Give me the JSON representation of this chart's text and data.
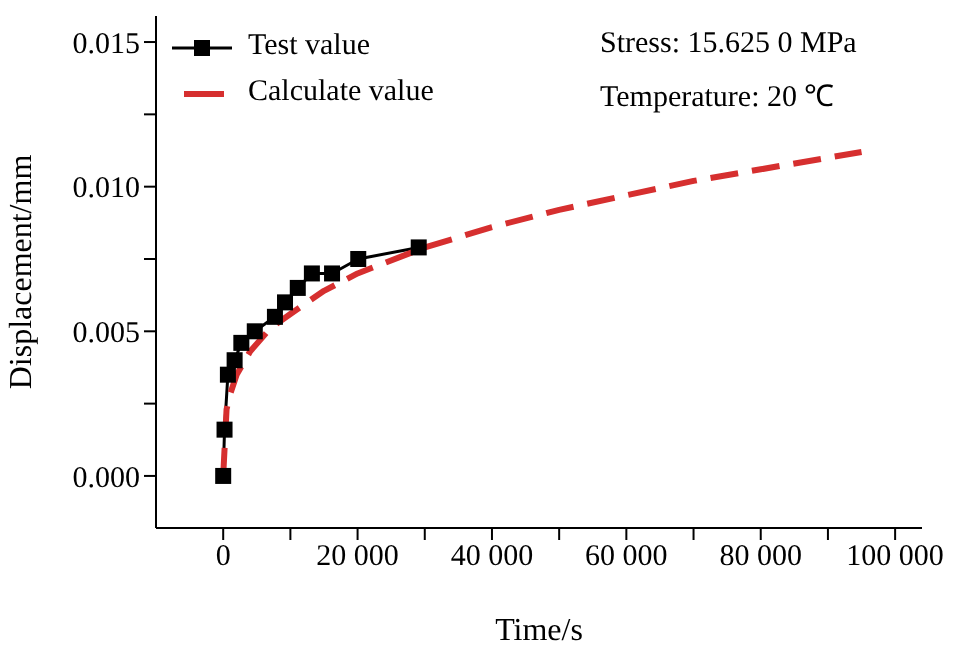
{
  "chart_data": {
    "type": "line",
    "xlabel": "Time/s",
    "ylabel": "Displacement/mm",
    "xlim": [
      -10000,
      104000
    ],
    "ylim": [
      -0.0018,
      0.0159
    ],
    "xticks": [
      {
        "value": 0,
        "label": "0"
      },
      {
        "value": 10000,
        "label": null
      },
      {
        "value": 20000,
        "label": "20 000"
      },
      {
        "value": 30000,
        "label": null
      },
      {
        "value": 40000,
        "label": "40 000"
      },
      {
        "value": 50000,
        "label": null
      },
      {
        "value": 60000,
        "label": "60 000"
      },
      {
        "value": 70000,
        "label": null
      },
      {
        "value": 80000,
        "label": "80 000"
      },
      {
        "value": 90000,
        "label": null
      },
      {
        "value": 100000,
        "label": "100 000"
      }
    ],
    "yticks": [
      {
        "value": 0,
        "label": "0.000"
      },
      {
        "value": 0.0025,
        "label": null
      },
      {
        "value": 0.005,
        "label": "0.005"
      },
      {
        "value": 0.0075,
        "label": null
      },
      {
        "value": 0.01,
        "label": "0.010"
      },
      {
        "value": 0.0125,
        "label": null
      },
      {
        "value": 0.015,
        "label": "0.015"
      }
    ],
    "grid": false,
    "legend": "top left",
    "annotations": [
      "Stress: 15.625 0 MPa",
      "Temperature: 20 ℃"
    ],
    "series": [
      {
        "name": "Test value",
        "color": "#000000",
        "marker": "square",
        "line_style": "solid",
        "x": [
          0,
          200,
          700,
          1700,
          2700,
          4700,
          7700,
          9200,
          11100,
          13200,
          16200,
          20100,
          29100
        ],
        "values": [
          0,
          0.0016,
          0.0035,
          0.004,
          0.0046,
          0.005,
          0.0055,
          0.006,
          0.0065,
          0.007,
          0.007,
          0.0075,
          0.0079
        ]
      },
      {
        "name": "Calculate value",
        "color": "#d62f2f",
        "marker": "none",
        "line_style": "dashed",
        "x": [
          0,
          500,
          1000,
          2000,
          4000,
          7000,
          10000,
          15000,
          20000,
          30000,
          40000,
          50000,
          60000,
          70000,
          80000,
          90000,
          95000
        ],
        "values": [
          0,
          0.0023,
          0.0028,
          0.0035,
          0.0043,
          0.0051,
          0.0056,
          0.0064,
          0.007,
          0.0079,
          0.0086,
          0.0092,
          0.0097,
          0.0102,
          0.0106,
          0.011,
          0.0112
        ]
      }
    ]
  }
}
